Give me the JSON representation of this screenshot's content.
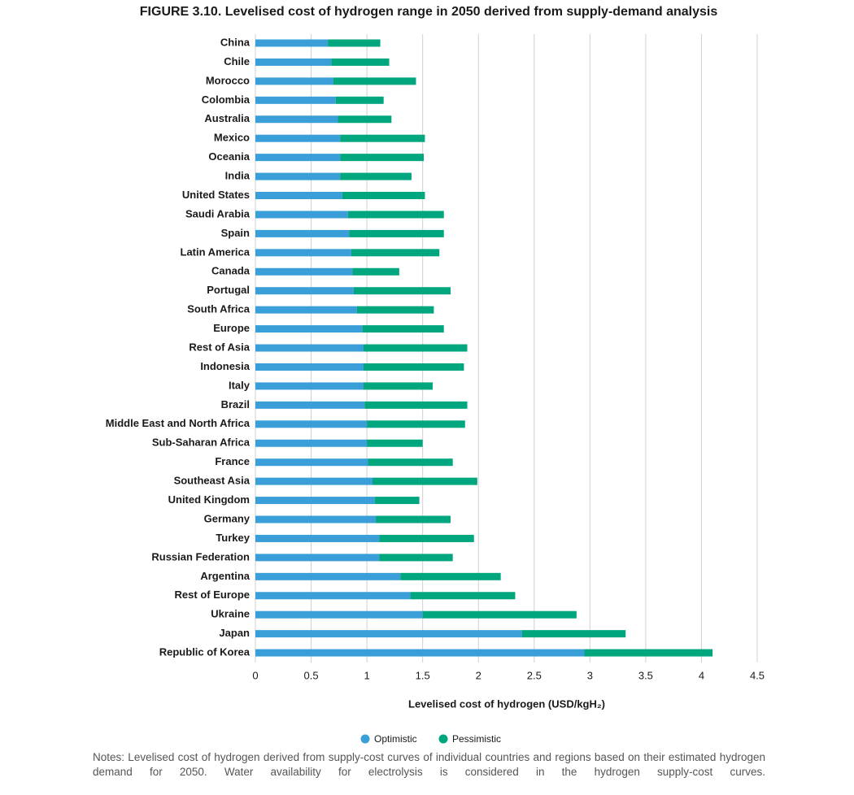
{
  "chart_data": {
    "type": "range-bar",
    "title": "FIGURE 3.10. Levelised cost of hydrogen range in 2050 derived from supply-demand analysis",
    "categories": [
      "China",
      "Chile",
      "Morocco",
      "Colombia",
      "Australia",
      "Mexico",
      "Oceania",
      "India",
      "United States",
      "Saudi Arabia",
      "Spain",
      "Latin America",
      "Canada",
      "Portugal",
      "South Africa",
      "Europe",
      "Rest of Asia",
      "Indonesia",
      "Italy",
      "Brazil",
      "Middle East and North Africa",
      "Sub-Saharan Africa",
      "France",
      "Southeast Asia",
      "United Kingdom",
      "Germany",
      "Turkey",
      "Russian Federation",
      "Argentina",
      "Rest of Europe",
      "Ukraine",
      "Japan",
      "Republic of Korea"
    ],
    "series": [
      {
        "name": "Optimistic",
        "color": "#3a9fd8",
        "values": [
          0.65,
          0.68,
          0.7,
          0.72,
          0.74,
          0.76,
          0.76,
          0.76,
          0.78,
          0.83,
          0.84,
          0.86,
          0.87,
          0.88,
          0.91,
          0.96,
          0.97,
          0.97,
          0.97,
          0.98,
          1.0,
          1.0,
          1.01,
          1.05,
          1.07,
          1.08,
          1.11,
          1.11,
          1.3,
          1.39,
          1.5,
          2.39,
          2.95
        ]
      },
      {
        "name": "Pessimistic",
        "color": "#00a67e",
        "values": [
          1.12,
          1.2,
          1.44,
          1.15,
          1.22,
          1.52,
          1.51,
          1.4,
          1.52,
          1.69,
          1.69,
          1.65,
          1.29,
          1.75,
          1.6,
          1.69,
          1.9,
          1.87,
          1.59,
          1.9,
          1.88,
          1.5,
          1.77,
          1.99,
          1.47,
          1.75,
          1.96,
          1.77,
          2.2,
          2.33,
          2.88,
          3.32,
          4.1
        ]
      }
    ],
    "xlabel": "Levelised cost of hydrogen (USD/kgH₂)",
    "xlim": [
      0,
      4.5
    ],
    "xticks": [
      0,
      0.5,
      1,
      1.5,
      2,
      2.5,
      3,
      3.5,
      4,
      4.5
    ],
    "grid": true,
    "notes": "Notes: Levelised cost of hydrogen derived from supply-cost curves of individual countries and regions based on their estimated hydrogen demand for 2050. Water availability for electrolysis is considered in the hydrogen supply-cost curves."
  }
}
